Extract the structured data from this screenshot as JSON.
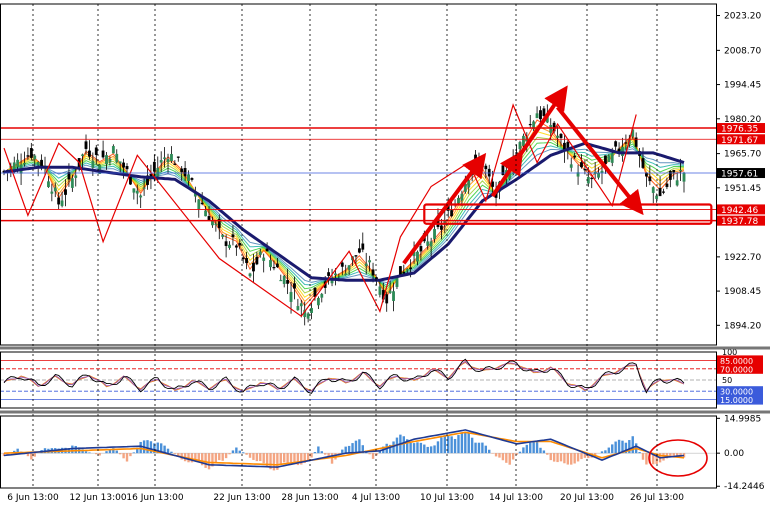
{
  "colors": {
    "background": "#ffffff",
    "grid": "#000000",
    "bull_candle": "#2e8b57",
    "bear_candle": "#000000",
    "ma_main": "#1a1a6e",
    "ribbon": [
      "#ff4500",
      "#ff8c00",
      "#ffd700",
      "#9acd32",
      "#32cd32",
      "#20b2aa",
      "#4682b4"
    ],
    "zigzag": "#e60000",
    "level_line": "#e60000",
    "current_price_line": "#3b5bdb",
    "rsi_line": "#000000",
    "rsi_signal": "#9b59b6",
    "rsi_signal2": "#e67e22",
    "rsi_overbought": "#e60000",
    "rsi_oversold": "#3b5bdb",
    "macd_hist_pos": "#4a90d9",
    "macd_hist_neg": "#f4a582",
    "macd_line": "#1f3a93",
    "macd_signal": "#ff8c00"
  },
  "chart_data": [
    {
      "type": "candlestick",
      "panel": "price",
      "x_ticks": [
        "6 Jun 13:00",
        "12 Jun 13:00",
        "16 Jun 13:00",
        "22 Jun 13:00",
        "28 Jun 13:00",
        "4 Jul 13:00",
        "10 Jul 13:00",
        "14 Jul 13:00",
        "20 Jul 13:00",
        "26 Jul 13:00"
      ],
      "y_ticks": [
        "2023.20",
        "2008.70",
        "1994.45",
        "1980.20",
        "1965.70",
        "1951.45",
        "1922.70",
        "1908.45",
        "1894.20"
      ],
      "ylim": [
        1886,
        2028
      ],
      "level_labels": [
        "1976.35",
        "1971.67",
        "1942.46",
        "1937.78"
      ],
      "levels": [
        1976.35,
        1971.67,
        1942.46,
        1937.78
      ],
      "current_price_label": "1957.61",
      "current_price": 1957.61,
      "price_path": [
        [
          0,
          1958
        ],
        [
          4,
          1962
        ],
        [
          8,
          1966
        ],
        [
          12,
          1960
        ],
        [
          16,
          1945
        ],
        [
          20,
          1955
        ],
        [
          24,
          1968
        ],
        [
          28,
          1963
        ],
        [
          32,
          1967
        ],
        [
          36,
          1958
        ],
        [
          40,
          1948
        ],
        [
          44,
          1958
        ],
        [
          48,
          1966
        ],
        [
          52,
          1960
        ],
        [
          56,
          1950
        ],
        [
          60,
          1940
        ],
        [
          64,
          1930
        ],
        [
          68,
          1928
        ],
        [
          72,
          1915
        ],
        [
          76,
          1925
        ],
        [
          80,
          1918
        ],
        [
          84,
          1910
        ],
        [
          88,
          1900
        ],
        [
          92,
          1908
        ],
        [
          96,
          1914
        ],
        [
          100,
          1918
        ],
        [
          104,
          1925
        ],
        [
          108,
          1917
        ],
        [
          112,
          1905
        ],
        [
          116,
          1916
        ],
        [
          120,
          1922
        ],
        [
          124,
          1928
        ],
        [
          128,
          1935
        ],
        [
          132,
          1945
        ],
        [
          136,
          1957
        ],
        [
          140,
          1962
        ],
        [
          144,
          1948
        ],
        [
          148,
          1960
        ],
        [
          152,
          1972
        ],
        [
          156,
          1983
        ],
        [
          160,
          1978
        ],
        [
          164,
          1968
        ],
        [
          168,
          1960
        ],
        [
          172,
          1954
        ],
        [
          176,
          1960
        ],
        [
          180,
          1968
        ],
        [
          184,
          1975
        ],
        [
          188,
          1955
        ],
        [
          192,
          1948
        ],
        [
          196,
          1956
        ],
        [
          199,
          1958
        ]
      ],
      "ma_main": [
        [
          0,
          1958
        ],
        [
          10,
          1960
        ],
        [
          20,
          1960
        ],
        [
          30,
          1958
        ],
        [
          40,
          1956
        ],
        [
          50,
          1955
        ],
        [
          60,
          1946
        ],
        [
          70,
          1934
        ],
        [
          80,
          1924
        ],
        [
          90,
          1914
        ],
        [
          100,
          1913
        ],
        [
          110,
          1913
        ],
        [
          120,
          1916
        ],
        [
          130,
          1928
        ],
        [
          140,
          1946
        ],
        [
          150,
          1955
        ],
        [
          160,
          1965
        ],
        [
          170,
          1970
        ],
        [
          180,
          1966
        ],
        [
          190,
          1966
        ],
        [
          199,
          1962
        ]
      ],
      "zigzag": [
        [
          0,
          1968
        ],
        [
          7,
          1940
        ],
        [
          16,
          1970
        ],
        [
          22,
          1962
        ],
        [
          29,
          1929
        ],
        [
          39,
          1965
        ],
        [
          63,
          1922
        ],
        [
          87,
          1898
        ],
        [
          101,
          1925
        ],
        [
          110,
          1900
        ],
        [
          116,
          1931
        ],
        [
          125,
          1952
        ],
        [
          136,
          1962
        ],
        [
          141,
          1946
        ],
        [
          149,
          1986
        ],
        [
          156,
          1962
        ],
        [
          162,
          1978
        ],
        [
          178,
          1944
        ],
        [
          185,
          1982
        ]
      ],
      "arrows": [
        {
          "from": [
            117,
            1920
          ],
          "to": [
            139,
            1962
          ]
        },
        {
          "from": [
            143,
            1948
          ],
          "to": [
            150,
            1963
          ]
        },
        {
          "from": [
            150,
            1963
          ],
          "to": [
            163,
            1990
          ]
        },
        {
          "from": [
            162,
            1985
          ],
          "to": [
            185,
            1944
          ]
        }
      ],
      "boxes": [
        {
          "x0": 123,
          "x1": 207,
          "y0": 1944.5,
          "y1": 1936.5
        }
      ],
      "n_bars": 200
    },
    {
      "type": "line",
      "panel": "rsi",
      "y_ticks": [
        "100",
        "85.0000",
        "70.0000",
        "50",
        "30.0000",
        "15.0000"
      ],
      "ylim": [
        0,
        100
      ],
      "levels": [
        85,
        70,
        50,
        30,
        15
      ],
      "rsi": [
        [
          0,
          45
        ],
        [
          5,
          58
        ],
        [
          10,
          40
        ],
        [
          15,
          55
        ],
        [
          20,
          42
        ],
        [
          25,
          60
        ],
        [
          30,
          38
        ],
        [
          35,
          55
        ],
        [
          40,
          35
        ],
        [
          45,
          52
        ],
        [
          50,
          30
        ],
        [
          55,
          48
        ],
        [
          60,
          36
        ],
        [
          65,
          50
        ],
        [
          70,
          28
        ],
        [
          75,
          46
        ],
        [
          80,
          35
        ],
        [
          85,
          50
        ],
        [
          90,
          30
        ],
        [
          95,
          55
        ],
        [
          100,
          45
        ],
        [
          105,
          62
        ],
        [
          110,
          40
        ],
        [
          115,
          58
        ],
        [
          120,
          48
        ],
        [
          125,
          68
        ],
        [
          130,
          55
        ],
        [
          135,
          82
        ],
        [
          140,
          65
        ],
        [
          145,
          75
        ],
        [
          150,
          80
        ],
        [
          155,
          62
        ],
        [
          160,
          72
        ],
        [
          165,
          45
        ],
        [
          170,
          32
        ],
        [
          175,
          55
        ],
        [
          180,
          68
        ],
        [
          185,
          78
        ],
        [
          188,
          30
        ],
        [
          192,
          52
        ],
        [
          196,
          48
        ],
        [
          199,
          45
        ]
      ]
    },
    {
      "type": "bar",
      "panel": "macd",
      "y_ticks": [
        "14.9985",
        "0.00",
        "-14.2446"
      ],
      "ylim": [
        -15,
        16
      ],
      "histogram": [
        [
          0,
          -2
        ],
        [
          4,
          2
        ],
        [
          8,
          -3
        ],
        [
          12,
          3
        ],
        [
          16,
          2
        ],
        [
          20,
          4
        ],
        [
          24,
          1
        ],
        [
          28,
          -1
        ],
        [
          32,
          3
        ],
        [
          36,
          -4
        ],
        [
          40,
          5
        ],
        [
          44,
          7
        ],
        [
          48,
          2
        ],
        [
          52,
          -3
        ],
        [
          56,
          -5
        ],
        [
          60,
          -7
        ],
        [
          64,
          -4
        ],
        [
          68,
          3
        ],
        [
          72,
          -2
        ],
        [
          76,
          -6
        ],
        [
          80,
          -8
        ],
        [
          84,
          -4
        ],
        [
          88,
          -7
        ],
        [
          92,
          3
        ],
        [
          96,
          -5
        ],
        [
          100,
          4
        ],
        [
          104,
          6
        ],
        [
          108,
          -3
        ],
        [
          112,
          5
        ],
        [
          116,
          8
        ],
        [
          120,
          6
        ],
        [
          124,
          3
        ],
        [
          128,
          7
        ],
        [
          132,
          10
        ],
        [
          136,
          9
        ],
        [
          140,
          5
        ],
        [
          144,
          -2
        ],
        [
          148,
          -5
        ],
        [
          152,
          3
        ],
        [
          156,
          6
        ],
        [
          160,
          -3
        ],
        [
          164,
          -6
        ],
        [
          168,
          -4
        ],
        [
          172,
          -2
        ],
        [
          176,
          2
        ],
        [
          180,
          6
        ],
        [
          184,
          8
        ],
        [
          188,
          -7
        ],
        [
          192,
          -4
        ],
        [
          196,
          -2
        ]
      ],
      "macd_line": [
        [
          0,
          -1
        ],
        [
          20,
          2
        ],
        [
          40,
          3
        ],
        [
          60,
          -5
        ],
        [
          80,
          -6
        ],
        [
          100,
          0
        ],
        [
          110,
          1
        ],
        [
          120,
          6
        ],
        [
          135,
          10
        ],
        [
          150,
          4
        ],
        [
          160,
          6
        ],
        [
          175,
          -3
        ],
        [
          185,
          3
        ],
        [
          192,
          -2
        ],
        [
          199,
          -1
        ]
      ],
      "signal_line": [
        [
          0,
          0
        ],
        [
          20,
          1
        ],
        [
          40,
          2
        ],
        [
          60,
          -4
        ],
        [
          80,
          -5
        ],
        [
          100,
          -1
        ],
        [
          110,
          2
        ],
        [
          120,
          5
        ],
        [
          135,
          9
        ],
        [
          150,
          5
        ],
        [
          160,
          5
        ],
        [
          175,
          -2
        ],
        [
          185,
          2
        ],
        [
          192,
          -1
        ],
        [
          199,
          -2
        ]
      ]
    }
  ]
}
